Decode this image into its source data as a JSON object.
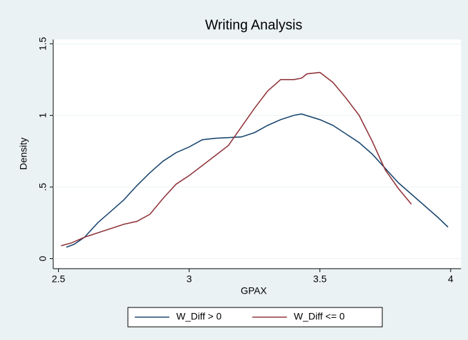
{
  "chart_data": {
    "type": "line",
    "title": "Writing Analysis",
    "xlabel": "GPAX",
    "ylabel": "Density",
    "xlim": [
      2.48,
      4.04
    ],
    "ylim": [
      -0.07,
      1.53
    ],
    "xticks": [
      2.5,
      3,
      3.5,
      4
    ],
    "yticks": [
      0,
      {
        "value": 0.5,
        "label": ".5"
      },
      1,
      1.5
    ],
    "grid": true,
    "legend": "bottom",
    "series": [
      {
        "name": "W_Diff > 0",
        "color": "#1a476f",
        "x": [
          2.53,
          2.56,
          2.6,
          2.65,
          2.7,
          2.75,
          2.8,
          2.85,
          2.9,
          2.95,
          3.0,
          3.05,
          3.1,
          3.15,
          3.2,
          3.25,
          3.3,
          3.35,
          3.4,
          3.43,
          3.5,
          3.55,
          3.6,
          3.65,
          3.7,
          3.75,
          3.8,
          3.85,
          3.9,
          3.95,
          3.99
        ],
        "values": [
          0.08,
          0.1,
          0.15,
          0.25,
          0.33,
          0.41,
          0.51,
          0.6,
          0.68,
          0.74,
          0.78,
          0.83,
          0.84,
          0.845,
          0.85,
          0.88,
          0.93,
          0.97,
          1.0,
          1.01,
          0.97,
          0.93,
          0.87,
          0.81,
          0.73,
          0.63,
          0.53,
          0.45,
          0.37,
          0.29,
          0.22
        ]
      },
      {
        "name": "W_Diff <= 0",
        "color": "#90353b",
        "x": [
          2.51,
          2.55,
          2.6,
          2.65,
          2.7,
          2.75,
          2.8,
          2.85,
          2.9,
          2.95,
          3.0,
          3.05,
          3.1,
          3.15,
          3.2,
          3.25,
          3.3,
          3.35,
          3.4,
          3.43,
          3.45,
          3.5,
          3.55,
          3.6,
          3.65,
          3.7,
          3.75,
          3.8,
          3.85
        ],
        "values": [
          0.09,
          0.11,
          0.15,
          0.18,
          0.21,
          0.24,
          0.26,
          0.31,
          0.42,
          0.52,
          0.58,
          0.65,
          0.72,
          0.79,
          0.92,
          1.05,
          1.17,
          1.25,
          1.25,
          1.26,
          1.29,
          1.3,
          1.23,
          1.12,
          1.0,
          0.82,
          0.62,
          0.49,
          0.38
        ]
      }
    ]
  }
}
